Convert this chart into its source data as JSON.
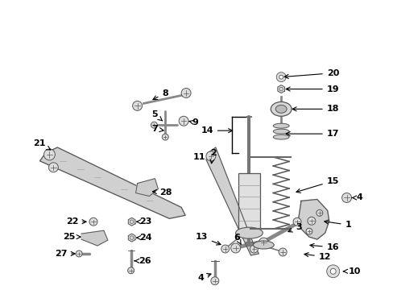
{
  "bg_color": "#ffffff",
  "line_color": "#000000",
  "gray_part": "#888888",
  "gray_fill": "#cccccc",
  "gray_mid": "#aaaaaa"
}
